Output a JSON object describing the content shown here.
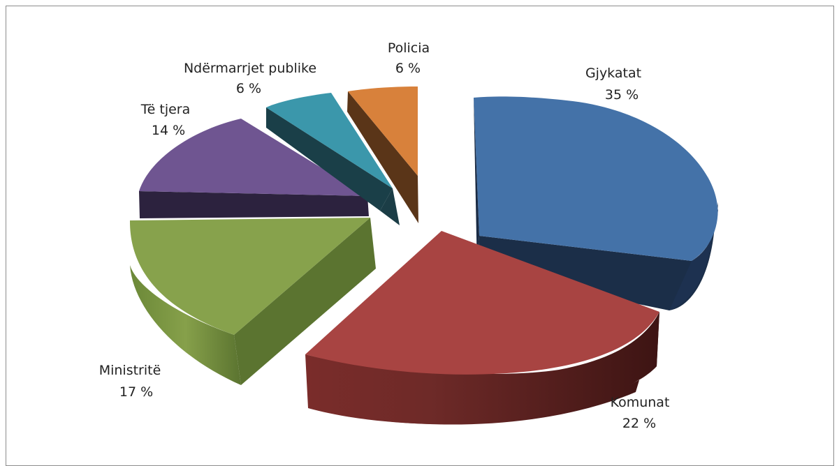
{
  "chart_data": {
    "type": "pie",
    "style": "3d-exploded",
    "slices": [
      {
        "label": "Gjykatat",
        "value": 35,
        "value_text": "35 %",
        "color": "#4472a8",
        "side_color": "#1b2e48"
      },
      {
        "label": "Komunat",
        "value": 22,
        "value_text": "22 %",
        "color": "#a84442",
        "side_color": "#5a201f"
      },
      {
        "label": "Ministritë",
        "value": 17,
        "value_text": "17 %",
        "color": "#87a24c",
        "side_color": "#5b7430"
      },
      {
        "label": "Të tjera",
        "value": 14,
        "value_text": "14 %",
        "color": "#6f5591",
        "side_color": "#2c223e"
      },
      {
        "label": "Ndërmarrjet publike",
        "value": 6,
        "value_text": "6 %",
        "color": "#3b97ab",
        "side_color": "#1a3f48"
      },
      {
        "label": "Policia",
        "value": 6,
        "value_text": "6 %",
        "color": "#d8813b",
        "side_color": "#5a3518"
      }
    ],
    "legend": "none"
  }
}
